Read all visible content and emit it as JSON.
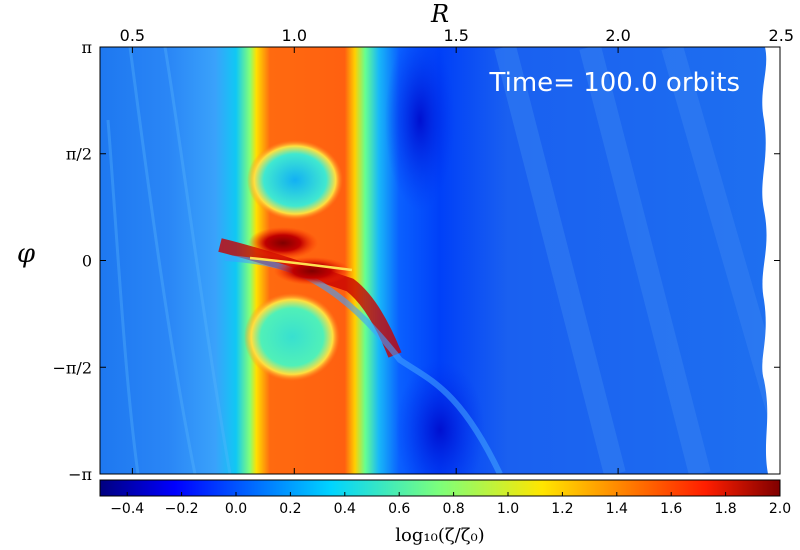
{
  "chart_data": {
    "type": "heatmap",
    "title": "",
    "xlabel": "R",
    "ylabel": "φ",
    "xlim": [
      0.4,
      2.5
    ],
    "ylim": [
      -3.14159,
      3.14159
    ],
    "x_ticks": [
      {
        "value": 0.5,
        "label": "0.5"
      },
      {
        "value": 1.0,
        "label": "1.0"
      },
      {
        "value": 1.5,
        "label": "1.5"
      },
      {
        "value": 2.0,
        "label": "2.0"
      },
      {
        "value": 2.5,
        "label": "2.5"
      }
    ],
    "y_ticks": [
      {
        "value": 3.14159,
        "label": "π"
      },
      {
        "value": 1.5708,
        "label": "π/2"
      },
      {
        "value": 0,
        "label": "0"
      },
      {
        "value": -1.5708,
        "label": "−π/2"
      },
      {
        "value": -3.14159,
        "label": "−π"
      }
    ],
    "annotation": "Time= 100.0 orbits",
    "colorbar": {
      "label": "log₁₀(ζ/ζ₀)",
      "range": [
        -0.5,
        2.0
      ],
      "ticks": [
        "−0.4",
        "−0.2",
        "0.0",
        "0.2",
        "0.4",
        "0.6",
        "0.8",
        "1.0",
        "1.2",
        "1.4",
        "1.6",
        "1.8",
        "2.0"
      ],
      "tick_values": [
        -0.4,
        -0.2,
        0.0,
        0.2,
        0.4,
        0.6,
        0.8,
        1.0,
        1.2,
        1.4,
        1.6,
        1.8,
        2.0
      ],
      "colormap": "jet"
    },
    "features": [
      {
        "name": "vortensity ring",
        "r_range": [
          0.85,
          1.15
        ],
        "value": 1.6
      },
      {
        "name": "upper vortex",
        "r": 1.0,
        "phi": 1.3,
        "value": 0.3
      },
      {
        "name": "lower vortex",
        "r": 1.0,
        "phi": -1.2,
        "value": 0.5
      },
      {
        "name": "planet spiral peak",
        "r": 1.02,
        "phi": 0.0,
        "value": 1.9
      },
      {
        "name": "background",
        "value": 0.0
      }
    ]
  }
}
